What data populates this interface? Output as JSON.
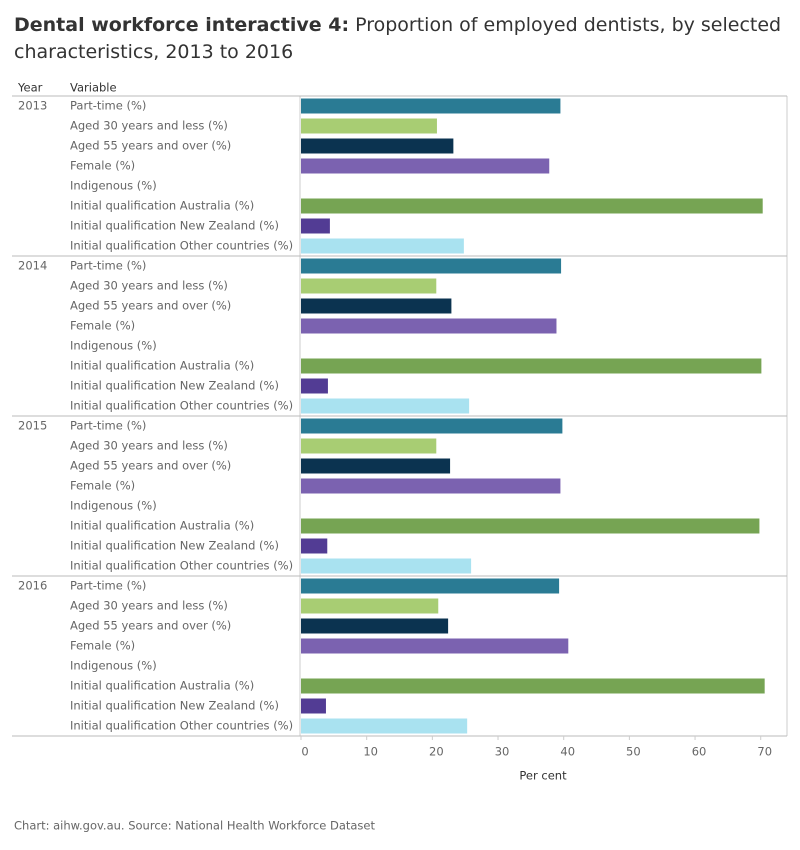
{
  "chart_data": {
    "type": "bar",
    "title_bold": "Dental workforce interactive 4:",
    "title": "Proportion of  employed dentists, by selected characteristics, 2013 to 2016",
    "column_headers": [
      "Year",
      "Variable"
    ],
    "categories": [
      "Part-time (%)",
      "Aged 30 years and less (%)",
      "Aged 55 years and over (%)",
      "Female (%)",
      "Indigenous (%)",
      "Initial qualification Australia (%)",
      "Initial qualification New Zealand (%)",
      "Initial qualification Other countries (%)"
    ],
    "colors": [
      "#2a7b94",
      "#a8cd73",
      "#0b3350",
      "#7b62b0",
      "#7b62b0",
      "#76a453",
      "#523c94",
      "#a9e2f0"
    ],
    "groups": [
      {
        "year": "2013",
        "values": [
          39.5,
          20.7,
          23.2,
          37.8,
          null,
          70.3,
          4.4,
          24.8
        ]
      },
      {
        "year": "2014",
        "values": [
          39.6,
          20.6,
          22.9,
          38.9,
          null,
          70.1,
          4.1,
          25.6
        ]
      },
      {
        "year": "2015",
        "values": [
          39.8,
          20.6,
          22.7,
          39.5,
          null,
          69.8,
          4.0,
          25.9
        ]
      },
      {
        "year": "2016",
        "values": [
          39.3,
          20.9,
          22.4,
          40.7,
          null,
          70.6,
          3.8,
          25.3
        ]
      }
    ],
    "xlim": [
      0,
      74
    ],
    "xticks": [
      0,
      10,
      20,
      30,
      40,
      50,
      60,
      70
    ],
    "x_label": "Per cent",
    "source": "Chart: aihw.gov.au. Source: National Health Workforce Dataset"
  }
}
